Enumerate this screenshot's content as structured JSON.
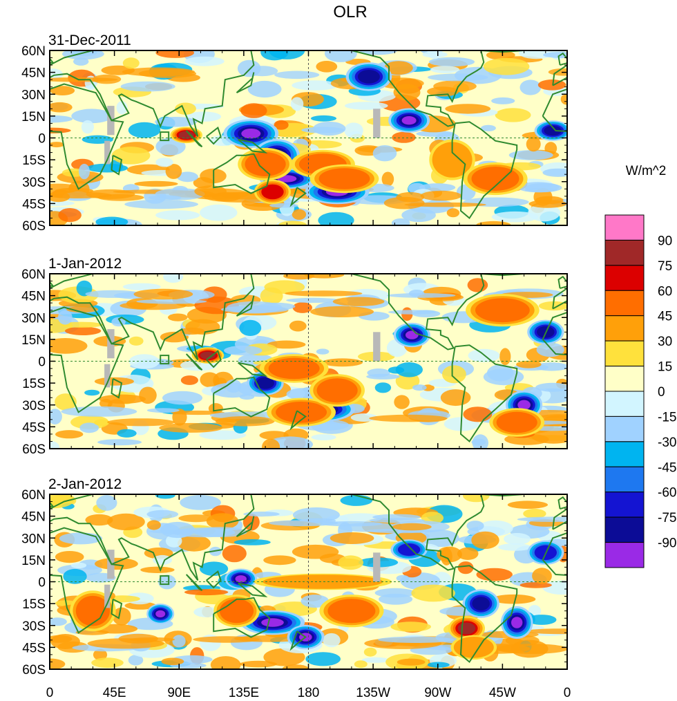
{
  "chart_data": {
    "type": "heatmap",
    "title": "OLR",
    "units": "W/m^2",
    "x_ticks": [
      "0",
      "45E",
      "90E",
      "135E",
      "180",
      "135W",
      "90W",
      "45W",
      "0"
    ],
    "x_tick_lons": [
      0,
      45,
      90,
      135,
      180,
      225,
      270,
      315,
      360
    ],
    "xlim": [
      0,
      360
    ],
    "y_ticks": [
      "60N",
      "45N",
      "30N",
      "15N",
      "0",
      "15S",
      "30S",
      "45S",
      "60S"
    ],
    "y_tick_lats": [
      60,
      45,
      30,
      15,
      0,
      -15,
      -30,
      -45,
      -60
    ],
    "ylim": [
      -60,
      60
    ],
    "reference_lines": {
      "equator": 0,
      "dateline": 180
    },
    "colorbar": {
      "levels": [
        -90,
        -75,
        -60,
        -45,
        -30,
        -15,
        0,
        15,
        30,
        45,
        60,
        75,
        90
      ],
      "labels": [
        "90",
        "75",
        "60",
        "45",
        "30",
        "15",
        "0",
        "-15",
        "-30",
        "-45",
        "-60",
        "-75",
        "-90"
      ],
      "colors": [
        "#9a2ae6",
        "#0c0c96",
        "#1414d2",
        "#1e78f0",
        "#00b4f0",
        "#a0d2ff",
        "#d2f5ff",
        "#ffffc8",
        "#ffe13c",
        "#ffa00a",
        "#ff6e00",
        "#dc0000",
        "#a02828",
        "#ff78c8"
      ]
    },
    "panels": [
      {
        "date": "31-Dec-2011",
        "anomalies": [
          {
            "lon": 250,
            "lat": 12,
            "value": -95,
            "rx": 9,
            "ry": 6
          },
          {
            "lon": 222,
            "lat": 42,
            "value": -85,
            "rx": 10,
            "ry": 7
          },
          {
            "lon": 140,
            "lat": 3,
            "value": -95,
            "rx": 12,
            "ry": 7
          },
          {
            "lon": 158,
            "lat": -12,
            "value": -80,
            "rx": 10,
            "ry": 8
          },
          {
            "lon": 165,
            "lat": -28,
            "value": -90,
            "rx": 12,
            "ry": 5
          },
          {
            "lon": 200,
            "lat": -37,
            "value": -90,
            "rx": 14,
            "ry": 6
          },
          {
            "lon": 95,
            "lat": 2,
            "value": 75,
            "rx": 7,
            "ry": 4
          },
          {
            "lon": 150,
            "lat": -18,
            "value": 45,
            "rx": 12,
            "ry": 8
          },
          {
            "lon": 190,
            "lat": -18,
            "value": 45,
            "rx": 14,
            "ry": 7
          },
          {
            "lon": 155,
            "lat": -37,
            "value": 60,
            "rx": 8,
            "ry": 6
          },
          {
            "lon": 205,
            "lat": -28,
            "value": 45,
            "rx": 15,
            "ry": 7
          },
          {
            "lon": 280,
            "lat": -15,
            "value": 30,
            "rx": 10,
            "ry": 10
          },
          {
            "lon": 310,
            "lat": -28,
            "value": 45,
            "rx": 14,
            "ry": 8
          },
          {
            "lon": 350,
            "lat": 5,
            "value": -75,
            "rx": 8,
            "ry": 5
          }
        ]
      },
      {
        "date": "1-Jan-2012",
        "anomalies": [
          {
            "lon": 252,
            "lat": 18,
            "value": -90,
            "rx": 8,
            "ry": 6
          },
          {
            "lon": 330,
            "lat": -30,
            "value": -95,
            "rx": 8,
            "ry": 7
          },
          {
            "lon": 190,
            "lat": -33,
            "value": -85,
            "rx": 14,
            "ry": 6
          },
          {
            "lon": 150,
            "lat": -15,
            "value": -80,
            "rx": 8,
            "ry": 6
          },
          {
            "lon": 110,
            "lat": 4,
            "value": 75,
            "rx": 7,
            "ry": 4
          },
          {
            "lon": 170,
            "lat": -5,
            "value": 45,
            "rx": 15,
            "ry": 7
          },
          {
            "lon": 175,
            "lat": -35,
            "value": 45,
            "rx": 15,
            "ry": 7
          },
          {
            "lon": 200,
            "lat": -20,
            "value": 45,
            "rx": 12,
            "ry": 8
          },
          {
            "lon": 325,
            "lat": -42,
            "value": 45,
            "rx": 12,
            "ry": 7
          },
          {
            "lon": 315,
            "lat": 35,
            "value": 45,
            "rx": 16,
            "ry": 8
          },
          {
            "lon": 345,
            "lat": 20,
            "value": -75,
            "rx": 8,
            "ry": 6
          }
        ]
      },
      {
        "date": "2-Jan-2012",
        "anomalies": [
          {
            "lon": 133,
            "lat": 2,
            "value": -90,
            "rx": 7,
            "ry": 5
          },
          {
            "lon": 155,
            "lat": -28,
            "value": -95,
            "rx": 14,
            "ry": 6
          },
          {
            "lon": 178,
            "lat": -38,
            "value": -90,
            "rx": 8,
            "ry": 6
          },
          {
            "lon": 300,
            "lat": -15,
            "value": -85,
            "rx": 8,
            "ry": 7
          },
          {
            "lon": 325,
            "lat": -28,
            "value": -95,
            "rx": 7,
            "ry": 8
          },
          {
            "lon": 290,
            "lat": -32,
            "value": 75,
            "rx": 8,
            "ry": 6
          },
          {
            "lon": 77,
            "lat": -22,
            "value": -95,
            "rx": 6,
            "ry": 5
          },
          {
            "lon": 30,
            "lat": -20,
            "value": 45,
            "rx": 10,
            "ry": 10
          },
          {
            "lon": 130,
            "lat": -20,
            "value": 45,
            "rx": 10,
            "ry": 8
          },
          {
            "lon": 210,
            "lat": -20,
            "value": 45,
            "rx": 14,
            "ry": 8
          },
          {
            "lon": 190,
            "lat": 0,
            "value": 30,
            "rx": 30,
            "ry": 4
          },
          {
            "lon": 295,
            "lat": -45,
            "value": 30,
            "rx": 10,
            "ry": 6
          },
          {
            "lon": 250,
            "lat": 22,
            "value": -70,
            "rx": 8,
            "ry": 5
          },
          {
            "lon": 345,
            "lat": 20,
            "value": -60,
            "rx": 8,
            "ry": 6
          }
        ]
      }
    ]
  }
}
